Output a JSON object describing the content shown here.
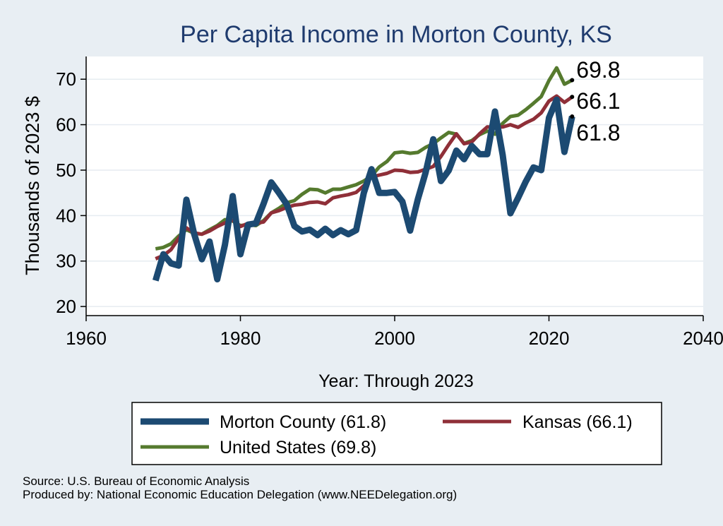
{
  "colors": {
    "background": "#e8eef3",
    "plot_background": "#ffffff",
    "title": "#1f3b6e",
    "morton": "#1c4a72",
    "kansas": "#8f2f38",
    "us": "#557a2e",
    "grid": "#e6ecf1"
  },
  "chart_data": {
    "type": "line",
    "title": "Per Capita Income in Morton County, KS",
    "xlabel": "Year: Through 2023",
    "ylabel": "Thousands of 2023 $",
    "xlim": [
      1960,
      2040
    ],
    "ylim": [
      18,
      75
    ],
    "x_ticks": [
      1960,
      1980,
      2000,
      2020,
      2040
    ],
    "y_ticks": [
      20,
      30,
      40,
      50,
      60,
      70
    ],
    "grid": true,
    "legend_position": "bottom",
    "series": [
      {
        "name": "Morton County",
        "legend_label": "Morton County (61.8)",
        "end_label": "61.8",
        "color_key": "morton",
        "width": "thick",
        "x": [
          1969,
          1970,
          1971,
          1972,
          1973,
          1974,
          1975,
          1976,
          1977,
          1978,
          1979,
          1980,
          1981,
          1982,
          1983,
          1984,
          1985,
          1986,
          1987,
          1988,
          1989,
          1990,
          1991,
          1992,
          1993,
          1994,
          1995,
          1996,
          1997,
          1998,
          1999,
          2000,
          2001,
          2002,
          2003,
          2004,
          2005,
          2006,
          2007,
          2008,
          2009,
          2010,
          2011,
          2012,
          2013,
          2014,
          2015,
          2016,
          2017,
          2018,
          2019,
          2020,
          2021,
          2022,
          2023
        ],
        "y": [
          25.7,
          31.5,
          29.5,
          29.0,
          43.5,
          36.0,
          30.4,
          34.3,
          26.0,
          33.6,
          44.3,
          31.5,
          38.0,
          38.3,
          42.6,
          47.3,
          45.0,
          42.5,
          37.7,
          36.5,
          36.9,
          35.7,
          37.1,
          35.7,
          36.8,
          35.9,
          36.8,
          45.0,
          50.2,
          45.0,
          45.0,
          45.2,
          43.1,
          36.7,
          43.6,
          49.4,
          56.8,
          47.6,
          49.9,
          54.3,
          52.4,
          55.3,
          53.5,
          53.5,
          62.9,
          53.3,
          40.5,
          43.9,
          47.5,
          50.6,
          50.0,
          61.5,
          65.5,
          54.0,
          61.8
        ]
      },
      {
        "name": "Kansas",
        "legend_label": "Kansas (66.1)",
        "end_label": "66.1",
        "color_key": "kansas",
        "width": "medium",
        "x": [
          1969,
          1970,
          1971,
          1972,
          1973,
          1974,
          1975,
          1976,
          1977,
          1978,
          1979,
          1980,
          1981,
          1982,
          1983,
          1984,
          1985,
          1986,
          1987,
          1988,
          1989,
          1990,
          1991,
          1992,
          1993,
          1994,
          1995,
          1996,
          1997,
          1998,
          1999,
          2000,
          2001,
          2002,
          2003,
          2004,
          2005,
          2006,
          2007,
          2008,
          2009,
          2010,
          2011,
          2012,
          2013,
          2014,
          2015,
          2016,
          2017,
          2018,
          2019,
          2020,
          2021,
          2022,
          2023
        ],
        "y": [
          30.5,
          31.2,
          32.5,
          35.0,
          37.3,
          36.2,
          35.9,
          36.6,
          37.6,
          38.4,
          39.0,
          37.6,
          38.3,
          38.3,
          38.6,
          40.6,
          41.1,
          41.8,
          42.3,
          42.5,
          42.9,
          43.0,
          42.6,
          43.9,
          44.3,
          44.6,
          45.1,
          46.6,
          48.5,
          48.9,
          49.3,
          50.0,
          49.9,
          49.5,
          49.6,
          50.2,
          50.8,
          53.0,
          55.6,
          58.0,
          55.8,
          56.2,
          58.0,
          59.5,
          59.4,
          59.5,
          60.0,
          59.4,
          60.4,
          61.2,
          62.6,
          65.2,
          66.3,
          64.9,
          66.1
        ]
      },
      {
        "name": "United States",
        "legend_label": "United States (69.8)",
        "end_label": "69.8",
        "color_key": "us",
        "width": "medium",
        "x": [
          1969,
          1970,
          1971,
          1972,
          1973,
          1974,
          1975,
          1976,
          1977,
          1978,
          1979,
          1980,
          1981,
          1982,
          1983,
          1984,
          1985,
          1986,
          1987,
          1988,
          1989,
          1990,
          1991,
          1992,
          1993,
          1994,
          1995,
          1996,
          1997,
          1998,
          1999,
          2000,
          2001,
          2002,
          2003,
          2004,
          2005,
          2006,
          2007,
          2008,
          2009,
          2010,
          2011,
          2012,
          2013,
          2014,
          2015,
          2016,
          2017,
          2018,
          2019,
          2020,
          2021,
          2022,
          2023
        ],
        "y": [
          32.7,
          33.0,
          33.8,
          35.5,
          36.9,
          36.1,
          35.9,
          36.9,
          37.8,
          39.1,
          38.8,
          37.8,
          38.0,
          37.8,
          38.9,
          40.6,
          41.6,
          42.8,
          43.3,
          44.7,
          45.8,
          45.7,
          45.0,
          45.8,
          45.8,
          46.3,
          46.8,
          47.6,
          48.7,
          50.7,
          51.9,
          53.8,
          54.0,
          53.7,
          53.9,
          55.0,
          55.8,
          57.1,
          58.3,
          57.9,
          55.9,
          56.5,
          57.8,
          58.6,
          57.9,
          60.3,
          61.8,
          62.1,
          63.3,
          64.7,
          66.2,
          69.7,
          72.5,
          68.9,
          69.8
        ]
      }
    ]
  },
  "source_lines": [
    "Source: U.S. Bureau of Economic Analysis",
    "Produced by: National Economic Education Delegation (www.NEEDelegation.org)"
  ]
}
